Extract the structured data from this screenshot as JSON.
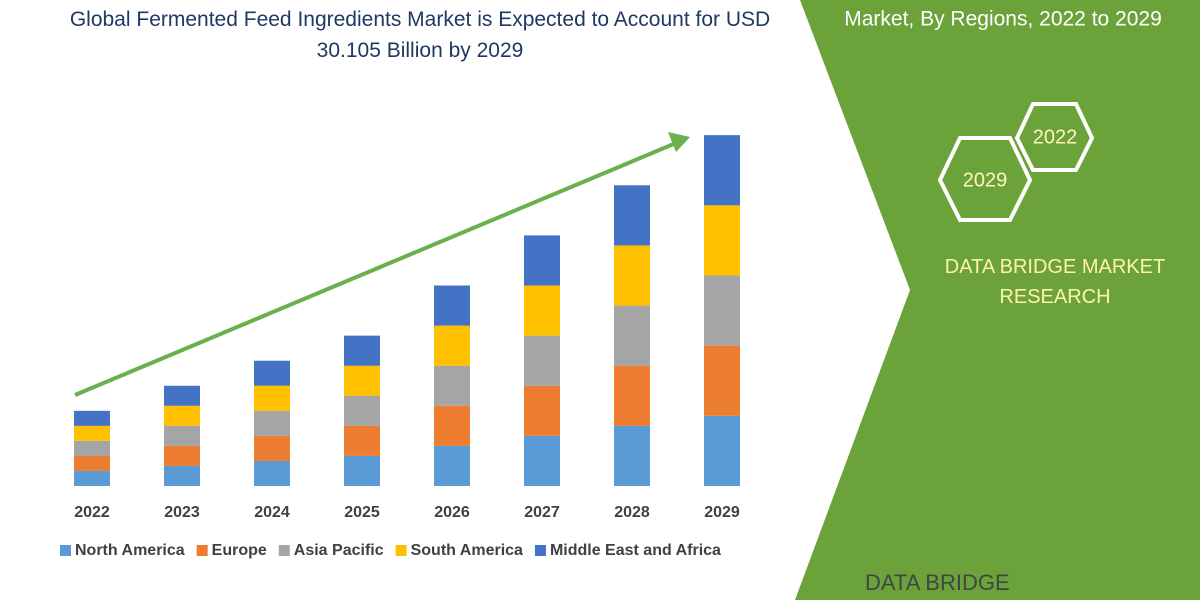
{
  "chart_data": {
    "type": "stacked_bar",
    "title": "Global Fermented Feed Ingredients Market is Expected to Account for USD 30.105 Billion by 2029",
    "categories": [
      "2022",
      "2023",
      "2024",
      "2025",
      "2026",
      "2027",
      "2028",
      "2029"
    ],
    "series": [
      {
        "name": "North America",
        "color": "#5b9bd5",
        "values": [
          1.29,
          1.72,
          2.15,
          2.58,
          3.44,
          4.3,
          5.16,
          6.02
        ]
      },
      {
        "name": "Europe",
        "color": "#ed7d31",
        "values": [
          1.29,
          1.72,
          2.15,
          2.58,
          3.44,
          4.3,
          5.16,
          6.02
        ]
      },
      {
        "name": "Asia Pacific",
        "color": "#a5a5a5",
        "values": [
          1.29,
          1.72,
          2.15,
          2.58,
          3.44,
          4.3,
          5.16,
          6.02
        ]
      },
      {
        "name": "South America",
        "color": "#ffc000",
        "values": [
          1.29,
          1.72,
          2.15,
          2.58,
          3.44,
          4.3,
          5.16,
          6.02
        ]
      },
      {
        "name": "Middle East and Africa",
        "color": "#4472c4",
        "values": [
          1.29,
          1.72,
          2.15,
          2.58,
          3.44,
          4.3,
          5.16,
          6.02
        ]
      }
    ],
    "ylim": [
      0,
      32
    ],
    "legend": "bottom"
  },
  "panel": {
    "heading": "Market, By Regions, 2022 to 2029",
    "hex_labels": [
      "2022",
      "2029"
    ],
    "brand": "DATA BRIDGE MARKET RESEARCH",
    "logo": "DATA BRIDGE"
  }
}
